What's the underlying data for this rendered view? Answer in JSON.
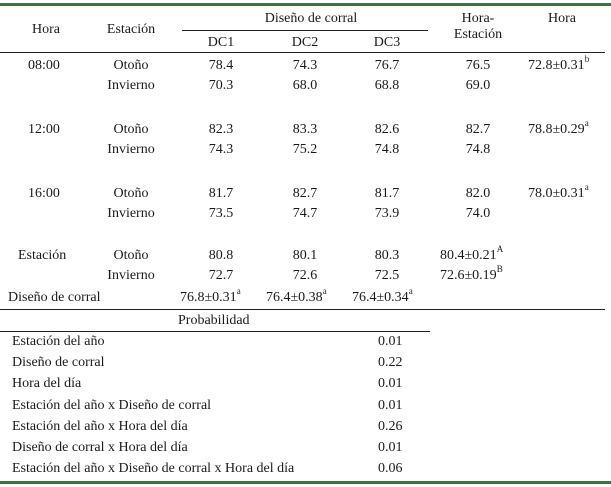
{
  "headers": {
    "hora": "Hora",
    "estacion": "Estación",
    "diseno": "Diseño de corral",
    "dc": [
      "DC1",
      "DC2",
      "DC3"
    ],
    "hora_estacion_1": "Hora-",
    "hora_estacion_2": "Estación",
    "hora_col": "Hora"
  },
  "groups": [
    {
      "hora": "08:00",
      "rows": [
        {
          "estacion": "Otoño",
          "dc": [
            "78.4",
            "74.3",
            "76.7"
          ],
          "he": "76.5"
        },
        {
          "estacion": "Invierno",
          "dc": [
            "70.3",
            "68.0",
            "68.8"
          ],
          "he": "69.0"
        }
      ],
      "hora_mean": "72.8±0.31",
      "hora_sup": "b"
    },
    {
      "hora": "12:00",
      "rows": [
        {
          "estacion": "Otoño",
          "dc": [
            "82.3",
            "83.3",
            "82.6"
          ],
          "he": "82.7"
        },
        {
          "estacion": "Invierno",
          "dc": [
            "74.3",
            "75.2",
            "74.8"
          ],
          "he": "74.8"
        }
      ],
      "hora_mean": "78.8±0.29",
      "hora_sup": "a"
    },
    {
      "hora": "16:00",
      "rows": [
        {
          "estacion": "Otoño",
          "dc": [
            "81.7",
            "82.7",
            "81.7"
          ],
          "he": "82.0"
        },
        {
          "estacion": "Invierno",
          "dc": [
            "73.5",
            "74.7",
            "73.9"
          ],
          "he": "74.0"
        }
      ],
      "hora_mean": "78.0±0.31",
      "hora_sup": "a"
    }
  ],
  "estacion_block": {
    "label": "Estación",
    "rows": [
      {
        "estacion": "Otoño",
        "dc": [
          "80.8",
          "80.1",
          "80.3"
        ],
        "he": "80.4±0.21",
        "sup": "A"
      },
      {
        "estacion": "Invierno",
        "dc": [
          "72.7",
          "72.6",
          "72.5"
        ],
        "he": "72.6±0.19",
        "sup": "B"
      }
    ]
  },
  "diseno_row": {
    "label": "Diseño de corral",
    "values": [
      {
        "v": "76.8±0.31",
        "sup": "a"
      },
      {
        "v": "76.4±0.38",
        "sup": "a"
      },
      {
        "v": "76.4±0.34",
        "sup": "a"
      }
    ]
  },
  "probabilidad": {
    "title": "Probabilidad",
    "rows": [
      {
        "label": "Estación del año",
        "p": "0.01"
      },
      {
        "label": "Diseño de corral",
        "p": "0.22"
      },
      {
        "label": "Hora del día",
        "p": "0.01"
      },
      {
        "label": "Estación del año x Diseño de corral",
        "p": "0.01"
      },
      {
        "label": "Estación del año x Hora del día",
        "p": "0.26"
      },
      {
        "label": "Diseño de corral x Hora del día",
        "p": "0.01"
      },
      {
        "label": "Estación del año x Diseño de corral x Hora del día",
        "p": "0.06"
      }
    ]
  },
  "colors": {
    "rule": "#2e7d32",
    "text": "#1a1a1a"
  }
}
